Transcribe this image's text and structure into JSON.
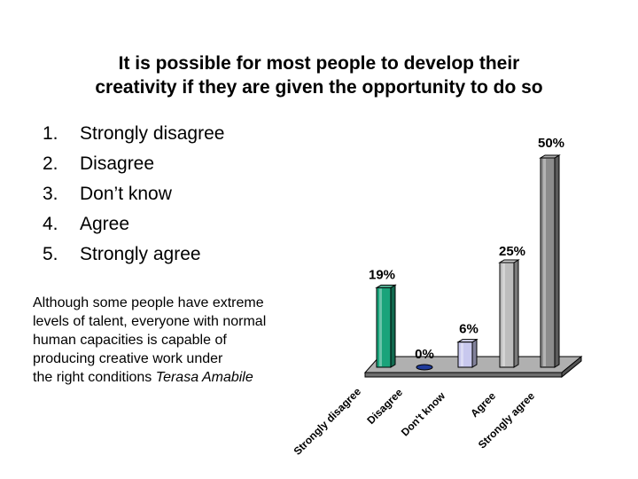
{
  "slide": {
    "title_lines": [
      "It is possible for most people to develop their",
      "creativity if they are given the opportunity to do so"
    ],
    "options": [
      {
        "num": "1.",
        "label": "Strongly disagree"
      },
      {
        "num": "2.",
        "label": "Disagree"
      },
      {
        "num": "3.",
        "label": "Don’t know"
      },
      {
        "num": "4.",
        "label": "Agree"
      },
      {
        "num": "5.",
        "label": "Strongly agree"
      }
    ],
    "quote_lines": [
      "Although some people have extreme",
      "levels of talent, everyone with normal",
      "human capacities is capable of",
      "producing creative work under"
    ],
    "quote_last_line": "the right conditions",
    "quote_author": "Terasa Amabile"
  },
  "chart_data": {
    "type": "bar",
    "categories": [
      "Strongly disagree",
      "Disagree",
      "Don't know",
      "Agree",
      "Strongly agree"
    ],
    "values": [
      19,
      0,
      6,
      25,
      50
    ],
    "value_labels": [
      "19%",
      "0%",
      "6%",
      "25%",
      "50%"
    ],
    "colors": [
      "#1aa37a",
      "#1f3a9a",
      "#c8c8ee",
      "#bdbdbd",
      "#8c8c8c"
    ],
    "ylim": [
      0,
      50
    ],
    "grid": false,
    "legend": "none"
  }
}
